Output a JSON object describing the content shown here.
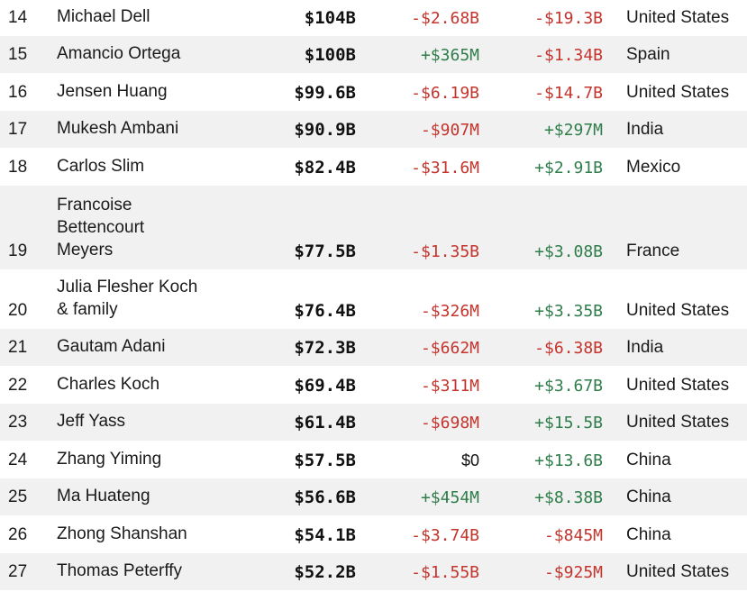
{
  "colors": {
    "negative": "#c4342d",
    "positive": "#2f7d4a",
    "stripe": "#f1f1f1"
  },
  "rows": [
    {
      "rank": "14",
      "name": "Michael Dell",
      "net_worth": "$104B",
      "last_change": "-$2.68B",
      "last_sign": "neg",
      "ytd_change": "-$19.3B",
      "ytd_sign": "neg",
      "country": "United States"
    },
    {
      "rank": "15",
      "name": "Amancio Ortega",
      "net_worth": "$100B",
      "last_change": "+$365M",
      "last_sign": "pos",
      "ytd_change": "-$1.34B",
      "ytd_sign": "neg",
      "country": "Spain"
    },
    {
      "rank": "16",
      "name": "Jensen Huang",
      "net_worth": "$99.6B",
      "last_change": "-$6.19B",
      "last_sign": "neg",
      "ytd_change": "-$14.7B",
      "ytd_sign": "neg",
      "country": "United States"
    },
    {
      "rank": "17",
      "name": "Mukesh Ambani",
      "net_worth": "$90.9B",
      "last_change": "-$907M",
      "last_sign": "neg",
      "ytd_change": "+$297M",
      "ytd_sign": "pos",
      "country": "India"
    },
    {
      "rank": "18",
      "name": "Carlos Slim",
      "net_worth": "$82.4B",
      "last_change": "-$31.6M",
      "last_sign": "neg",
      "ytd_change": "+$2.91B",
      "ytd_sign": "pos",
      "country": "Mexico"
    },
    {
      "rank": "19",
      "name": "Francoise Bettencourt Meyers",
      "net_worth": "$77.5B",
      "last_change": "-$1.35B",
      "last_sign": "neg",
      "ytd_change": "+$3.08B",
      "ytd_sign": "pos",
      "country": "France"
    },
    {
      "rank": "20",
      "name": "Julia Flesher Koch & family",
      "net_worth": "$76.4B",
      "last_change": "-$326M",
      "last_sign": "neg",
      "ytd_change": "+$3.35B",
      "ytd_sign": "pos",
      "country": "United States"
    },
    {
      "rank": "21",
      "name": "Gautam Adani",
      "net_worth": "$72.3B",
      "last_change": "-$662M",
      "last_sign": "neg",
      "ytd_change": "-$6.38B",
      "ytd_sign": "neg",
      "country": "India"
    },
    {
      "rank": "22",
      "name": "Charles Koch",
      "net_worth": "$69.4B",
      "last_change": "-$311M",
      "last_sign": "neg",
      "ytd_change": "+$3.67B",
      "ytd_sign": "pos",
      "country": "United States"
    },
    {
      "rank": "23",
      "name": "Jeff Yass",
      "net_worth": "$61.4B",
      "last_change": "-$698M",
      "last_sign": "neg",
      "ytd_change": "+$15.5B",
      "ytd_sign": "pos",
      "country": "United States"
    },
    {
      "rank": "24",
      "name": "Zhang Yiming",
      "net_worth": "$57.5B",
      "last_change": "$0",
      "last_sign": "zero",
      "ytd_change": "+$13.6B",
      "ytd_sign": "pos",
      "country": "China"
    },
    {
      "rank": "25",
      "name": "Ma Huateng",
      "net_worth": "$56.6B",
      "last_change": "+$454M",
      "last_sign": "pos",
      "ytd_change": "+$8.38B",
      "ytd_sign": "pos",
      "country": "China"
    },
    {
      "rank": "26",
      "name": "Zhong Shanshan",
      "net_worth": "$54.1B",
      "last_change": "-$3.74B",
      "last_sign": "neg",
      "ytd_change": "-$845M",
      "ytd_sign": "neg",
      "country": "China"
    },
    {
      "rank": "27",
      "name": "Thomas Peterffy",
      "net_worth": "$52.2B",
      "last_change": "-$1.55B",
      "last_sign": "neg",
      "ytd_change": "-$925M",
      "ytd_sign": "neg",
      "country": "United States"
    }
  ]
}
